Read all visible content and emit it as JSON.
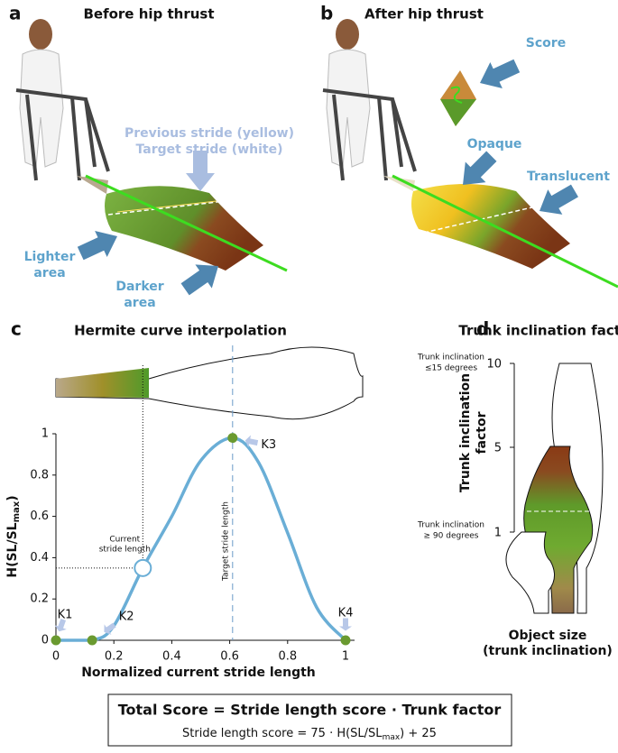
{
  "panel_a": {
    "letter": "a",
    "title": "Before hip thrust",
    "stride_note": [
      "Previous stride (yellow)",
      "Target stride (white)"
    ],
    "lighter": [
      "Lighter",
      "area"
    ],
    "darker": [
      "Darker",
      "area"
    ]
  },
  "panel_b": {
    "letter": "b",
    "title": "After hip thrust",
    "score": "Score",
    "opaque": "Opaque",
    "translucent": "Translucent"
  },
  "chart_data": {
    "type": "line",
    "panel_letter": "c",
    "title": "Hermite curve interpolation",
    "xlabel": "Normalized current stride length",
    "ylabel": [
      "H(SL/SL",
      "max",
      ")"
    ],
    "xlim": [
      0,
      1
    ],
    "ylim": [
      0,
      1
    ],
    "xticks": [
      0,
      0.2,
      0.4,
      0.6,
      0.8,
      1
    ],
    "yticks": [
      0,
      0.2,
      0.4,
      0.6,
      0.8,
      1
    ],
    "color": "#6aaed6",
    "x": [
      0,
      0.125,
      0.2,
      0.3,
      0.4,
      0.5,
      0.61,
      0.7,
      0.8,
      0.9,
      1
    ],
    "values": [
      0,
      0,
      0.07,
      0.35,
      0.6,
      0.87,
      0.98,
      0.86,
      0.52,
      0.16,
      0
    ],
    "keypoints": [
      {
        "label": "K1",
        "x": 0,
        "y": 0
      },
      {
        "label": "K2",
        "x": 0.125,
        "y": 0
      },
      {
        "label": "K3",
        "x": 0.61,
        "y": 0.98
      },
      {
        "label": "K4",
        "x": 1,
        "y": 0
      }
    ],
    "current": {
      "label": [
        "Current",
        "stride length"
      ],
      "x": 0.3,
      "y": 0.35
    },
    "target": {
      "label": "Target stride length",
      "x": 0.61
    }
  },
  "panel_d": {
    "letter": "d",
    "title": "Trunk inclination factor",
    "axis_label": [
      "Trunk inclination",
      "factor"
    ],
    "ticks": [
      "10",
      "5",
      "1"
    ],
    "top_note": [
      "Trunk inclination",
      "≤15 degrees"
    ],
    "bottom_note": [
      "Trunk inclination",
      "≥ 90 degrees"
    ],
    "xlabel": [
      "Object size",
      "(trunk inclination)"
    ]
  },
  "formula": {
    "total": "Total Score = Stride length score · Trunk factor",
    "stride": [
      "Stride length score = 75 · H(SL/SL",
      "max",
      ") + 25"
    ]
  }
}
